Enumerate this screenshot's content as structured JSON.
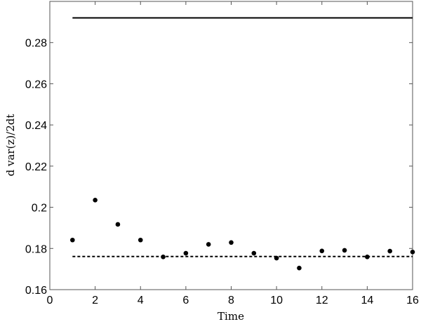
{
  "chart_data": {
    "type": "scatter",
    "title": "",
    "xlabel": "Time",
    "ylabel": "d var(z)/2dt",
    "xlim": [
      0,
      16
    ],
    "ylim": [
      0.16,
      0.3
    ],
    "xticks": [
      "0",
      "2",
      "4",
      "6",
      "8",
      "10",
      "12",
      "14",
      "16"
    ],
    "yticks": [
      "0.16",
      "0.18",
      "0.2",
      "0.22",
      "0.24",
      "0.26",
      "0.28"
    ],
    "grid": false,
    "points": {
      "x": [
        1,
        2,
        3,
        4,
        5,
        6,
        7,
        8,
        9,
        10,
        11,
        12,
        13,
        14,
        15,
        16
      ],
      "y": [
        0.1841,
        0.2035,
        0.1917,
        0.1841,
        0.1759,
        0.1777,
        0.182,
        0.1829,
        0.1777,
        0.1753,
        0.1705,
        0.1788,
        0.1791,
        0.1759,
        0.1787,
        0.1783
      ]
    },
    "reference_lines": [
      {
        "style": "solid",
        "y": 0.292,
        "x_range": [
          1,
          16
        ]
      },
      {
        "style": "dashed",
        "y": 0.1761,
        "x_range": [
          1,
          16
        ]
      }
    ],
    "colors": {
      "marks": "#000000",
      "axes": "#555555"
    }
  }
}
